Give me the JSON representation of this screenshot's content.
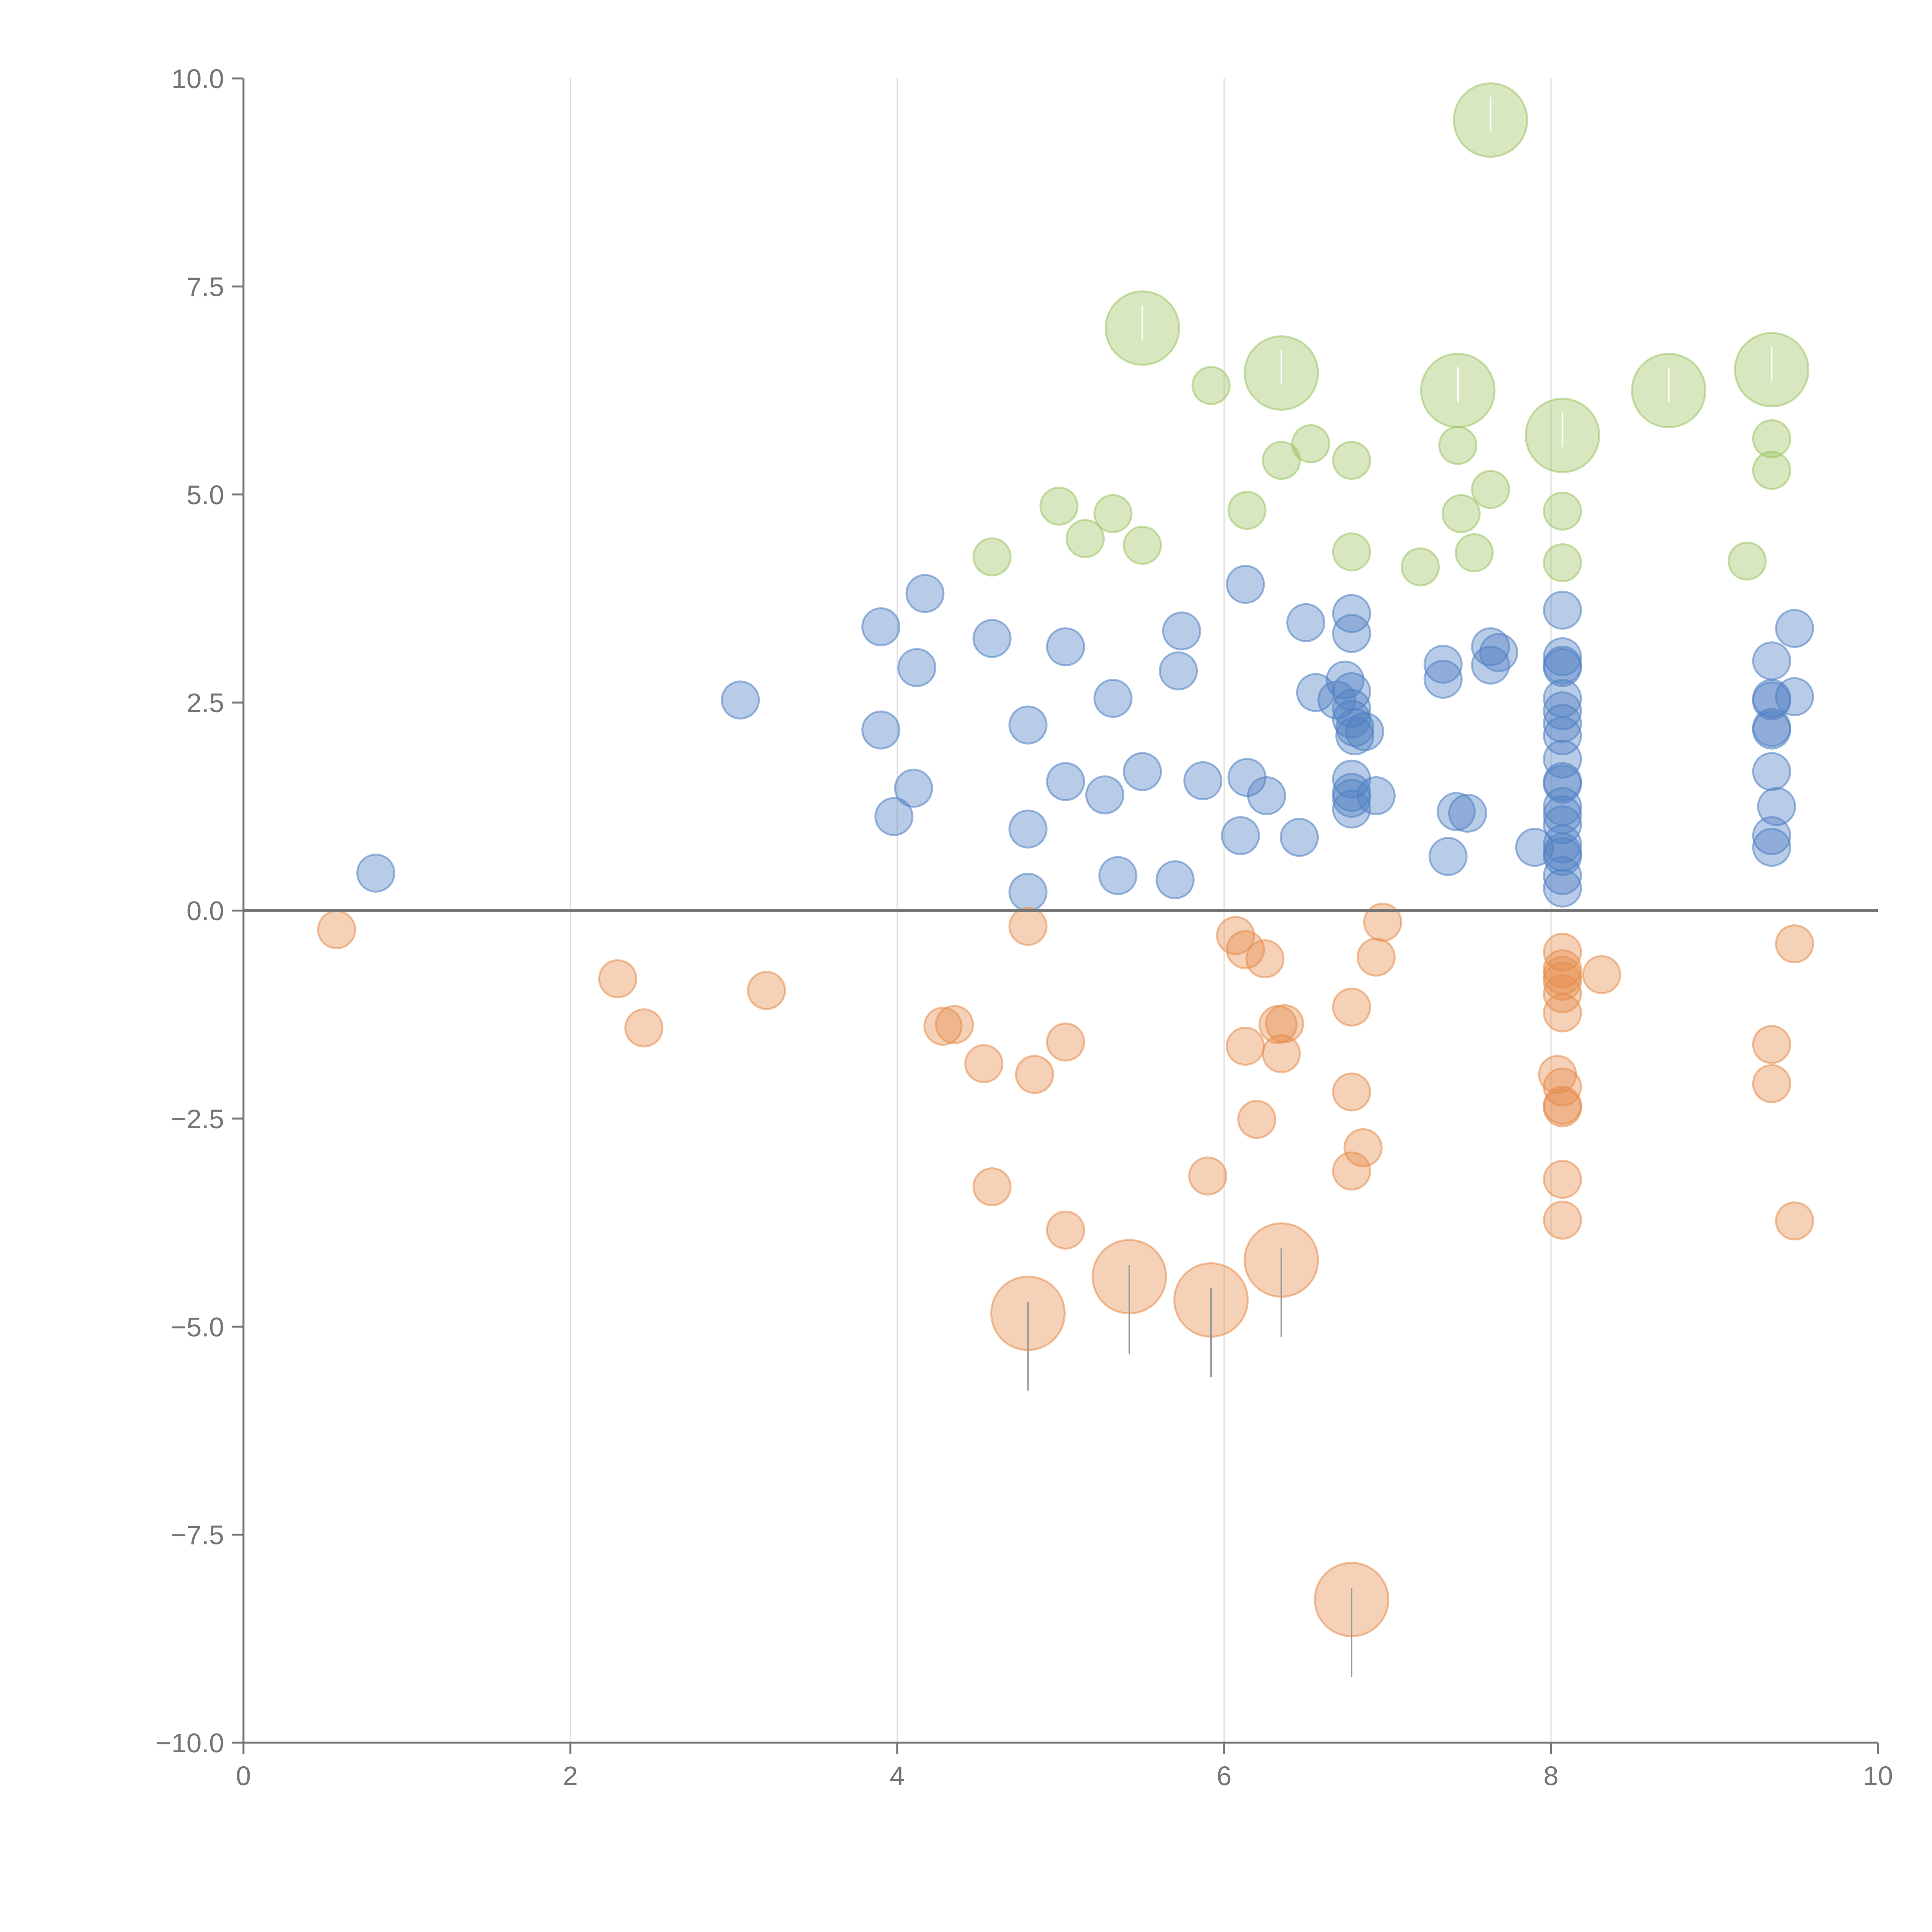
{
  "colors": {
    "positive": "#4f7fc4",
    "negative": "#e58c4a",
    "highlight": "#9dc462",
    "axis": "#757575",
    "grid": "#dddddd",
    "leader_light": "#ffffff",
    "leader_dark": "#999999"
  },
  "chart_data": {
    "type": "scatter",
    "subtype": "bubble",
    "title": "",
    "xlabel": "",
    "ylabel": "",
    "xlim": [
      0,
      10
    ],
    "ylim": [
      -10,
      10
    ],
    "x_ticks": [
      "0",
      "2",
      "4",
      "6",
      "8",
      "10"
    ],
    "y_ticks": [
      "10.0",
      "7.5",
      "5.0",
      "2.5",
      "0.0",
      "−2.5",
      "−5.0",
      "−7.5",
      "−10.0"
    ],
    "grid": "vertical",
    "legend": "none",
    "series": [
      {
        "name": "positive",
        "color_key": "positive",
        "points": [
          [
            0.81,
            0.45
          ],
          [
            3.04,
            2.53
          ],
          [
            3.9,
            3.41
          ],
          [
            3.9,
            2.17
          ],
          [
            4.17,
            3.81
          ],
          [
            4.12,
            2.92
          ],
          [
            3.98,
            1.13
          ],
          [
            4.1,
            1.47
          ],
          [
            4.58,
            3.27
          ],
          [
            4.8,
            2.23
          ],
          [
            4.8,
            0.98
          ],
          [
            4.8,
            0.22
          ],
          [
            5.03,
            3.17
          ],
          [
            5.03,
            1.55
          ],
          [
            5.27,
            1.39
          ],
          [
            5.32,
            2.55
          ],
          [
            5.35,
            0.42
          ],
          [
            5.5,
            1.67
          ],
          [
            5.72,
            2.88
          ],
          [
            5.74,
            3.36
          ],
          [
            5.7,
            0.37
          ],
          [
            5.87,
            1.56
          ],
          [
            6.13,
            3.92
          ],
          [
            6.1,
            0.9
          ],
          [
            6.14,
            1.6
          ],
          [
            6.26,
            1.38
          ],
          [
            6.46,
            0.88
          ],
          [
            6.5,
            3.46
          ],
          [
            6.56,
            2.62
          ],
          [
            6.69,
            2.53
          ],
          [
            6.74,
            2.77
          ],
          [
            6.78,
            3.57
          ],
          [
            6.78,
            3.33
          ],
          [
            6.78,
            2.63
          ],
          [
            6.78,
            2.43
          ],
          [
            6.78,
            2.3
          ],
          [
            6.8,
            2.2
          ],
          [
            6.8,
            2.1
          ],
          [
            6.86,
            2.15
          ],
          [
            6.78,
            1.58
          ],
          [
            6.78,
            1.42
          ],
          [
            6.78,
            1.35
          ],
          [
            6.78,
            1.22
          ],
          [
            6.93,
            1.38
          ],
          [
            7.34,
            2.96
          ],
          [
            7.34,
            2.78
          ],
          [
            7.37,
            0.65
          ],
          [
            7.42,
            1.19
          ],
          [
            7.49,
            1.17
          ],
          [
            7.63,
            3.17
          ],
          [
            7.68,
            3.1
          ],
          [
            7.63,
            2.95
          ],
          [
            7.9,
            0.76
          ],
          [
            8.07,
            3.61
          ],
          [
            8.07,
            3.05
          ],
          [
            8.07,
            2.95
          ],
          [
            8.07,
            2.92
          ],
          [
            8.07,
            2.55
          ],
          [
            8.07,
            2.4
          ],
          [
            8.07,
            2.25
          ],
          [
            8.07,
            2.1
          ],
          [
            8.07,
            1.82
          ],
          [
            8.07,
            1.55
          ],
          [
            8.07,
            1.52
          ],
          [
            8.07,
            1.25
          ],
          [
            8.07,
            1.15
          ],
          [
            8.07,
            1.03
          ],
          [
            8.07,
            0.8
          ],
          [
            8.07,
            0.7
          ],
          [
            8.07,
            0.65
          ],
          [
            8.07,
            0.42
          ],
          [
            8.07,
            0.27
          ],
          [
            9.35,
            3.0
          ],
          [
            9.49,
            3.39
          ],
          [
            9.35,
            2.55
          ],
          [
            9.35,
            2.52
          ],
          [
            9.49,
            2.57
          ],
          [
            9.35,
            2.2
          ],
          [
            9.35,
            2.17
          ],
          [
            9.35,
            1.67
          ],
          [
            9.38,
            1.25
          ],
          [
            9.35,
            0.9
          ],
          [
            9.35,
            0.76
          ]
        ]
      },
      {
        "name": "negative",
        "color_key": "negative",
        "points": [
          [
            0.57,
            -0.23
          ],
          [
            2.29,
            -0.82
          ],
          [
            2.45,
            -1.41
          ],
          [
            3.2,
            -0.96
          ],
          [
            4.28,
            -1.39
          ],
          [
            4.35,
            -1.37
          ],
          [
            4.53,
            -1.84
          ],
          [
            4.58,
            -3.32
          ],
          [
            4.8,
            -0.19
          ],
          [
            4.84,
            -1.97
          ],
          [
            5.03,
            -1.58
          ],
          [
            5.03,
            -3.84
          ],
          [
            5.9,
            -3.19
          ],
          [
            6.07,
            -0.3
          ],
          [
            6.13,
            -0.47
          ],
          [
            6.25,
            -0.58
          ],
          [
            6.13,
            -1.63
          ],
          [
            6.2,
            -2.51
          ],
          [
            6.33,
            -1.37
          ],
          [
            6.37,
            -1.36
          ],
          [
            6.35,
            -1.72
          ],
          [
            6.78,
            -1.16
          ],
          [
            6.78,
            -2.18
          ],
          [
            6.78,
            -3.13
          ],
          [
            6.85,
            -2.85
          ],
          [
            6.93,
            -0.56
          ],
          [
            6.97,
            -0.14
          ],
          [
            8.07,
            -0.5
          ],
          [
            8.07,
            -0.7
          ],
          [
            8.07,
            -0.78
          ],
          [
            8.07,
            -0.85
          ],
          [
            8.07,
            -1.0
          ],
          [
            8.07,
            -1.23
          ],
          [
            8.31,
            -0.77
          ],
          [
            8.04,
            -1.97
          ],
          [
            8.07,
            -2.12
          ],
          [
            8.07,
            -2.34
          ],
          [
            8.07,
            -2.37
          ],
          [
            8.07,
            -3.23
          ],
          [
            8.07,
            -3.72
          ],
          [
            9.35,
            -1.61
          ],
          [
            9.35,
            -2.08
          ],
          [
            9.49,
            -0.4
          ],
          [
            9.49,
            -3.73
          ]
        ]
      },
      {
        "name": "highlight",
        "color_key": "highlight",
        "points": [
          [
            4.58,
            4.25
          ],
          [
            4.99,
            4.86
          ],
          [
            5.15,
            4.47
          ],
          [
            5.32,
            4.77
          ],
          [
            5.5,
            4.39
          ],
          [
            5.92,
            6.31
          ],
          [
            6.14,
            4.81
          ],
          [
            6.35,
            5.41
          ],
          [
            6.53,
            5.61
          ],
          [
            6.78,
            5.41
          ],
          [
            6.78,
            4.31
          ],
          [
            7.2,
            4.13
          ],
          [
            7.43,
            5.59
          ],
          [
            7.45,
            4.77
          ],
          [
            7.53,
            4.3
          ],
          [
            7.63,
            5.06
          ],
          [
            8.07,
            4.8
          ],
          [
            8.07,
            4.18
          ],
          [
            9.2,
            4.2
          ],
          [
            9.35,
            5.67
          ],
          [
            9.35,
            5.29
          ]
        ]
      }
    ],
    "large_bubbles": [
      {
        "series": "highlight",
        "x": 7.63,
        "y": 9.5
      },
      {
        "series": "highlight",
        "x": 5.5,
        "y": 7.0
      },
      {
        "series": "highlight",
        "x": 6.35,
        "y": 6.46
      },
      {
        "series": "highlight",
        "x": 7.43,
        "y": 6.25
      },
      {
        "series": "highlight",
        "x": 8.07,
        "y": 5.71
      },
      {
        "series": "highlight",
        "x": 8.72,
        "y": 6.25
      },
      {
        "series": "highlight",
        "x": 9.35,
        "y": 6.5
      },
      {
        "series": "negative",
        "x": 4.8,
        "y": -4.84
      },
      {
        "series": "negative",
        "x": 5.42,
        "y": -4.4
      },
      {
        "series": "negative",
        "x": 5.92,
        "y": -4.68
      },
      {
        "series": "negative",
        "x": 6.35,
        "y": -4.2
      },
      {
        "series": "negative",
        "x": 6.78,
        "y": -8.28
      }
    ]
  }
}
